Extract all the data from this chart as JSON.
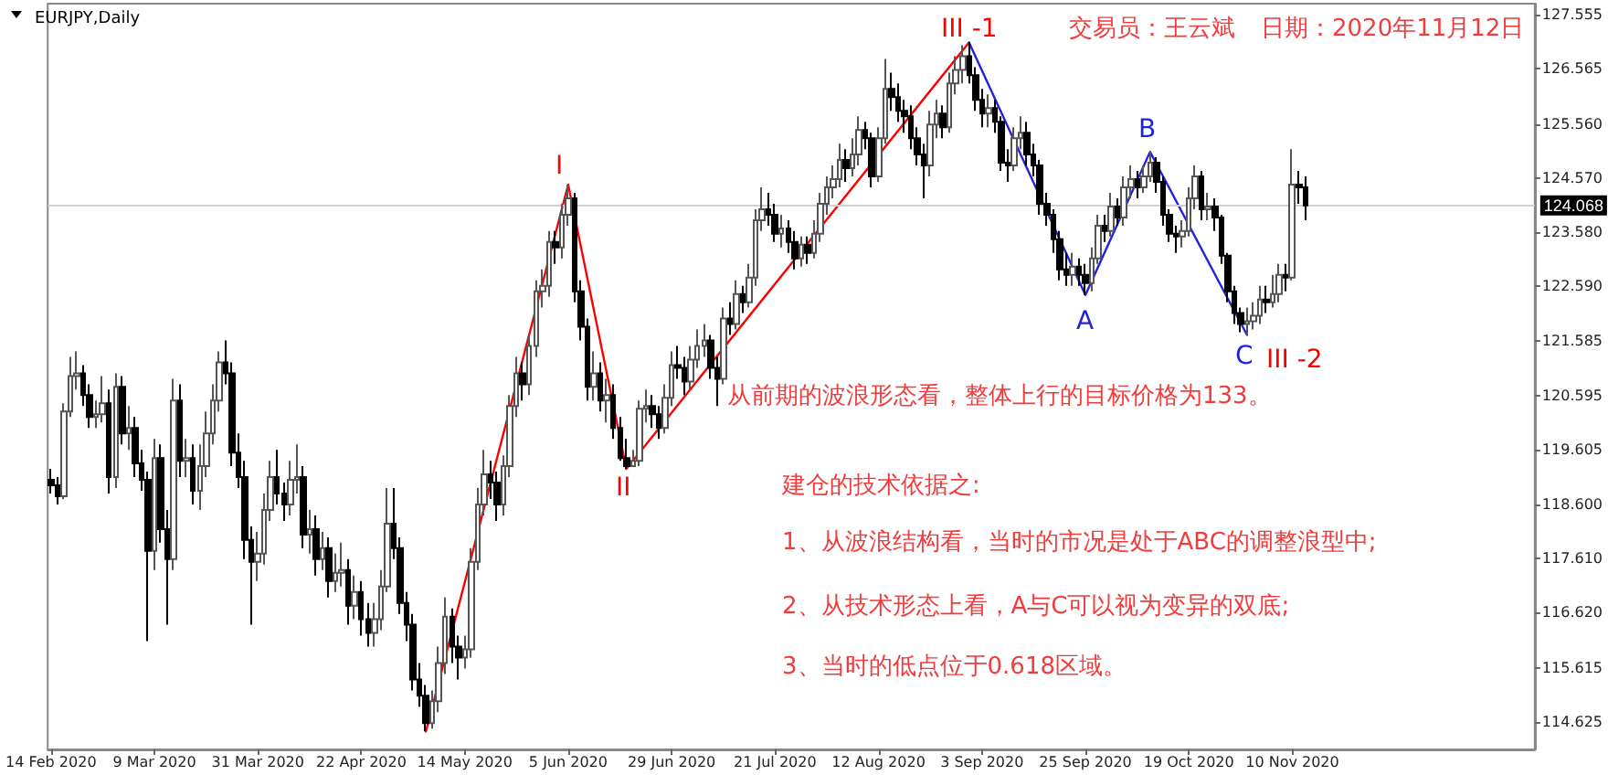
{
  "chart_data": {
    "type": "candlestick",
    "title": "EURJPY,Daily",
    "colors": [
      "#000000",
      "#000000",
      "#ffffff",
      "#ffffff",
      "#ffffff",
      "#000000",
      "#000000",
      "#ffffff",
      "#ffffff",
      "#000000",
      "#ffffff",
      "#000000",
      "#ffffff",
      "#000000",
      "#000000",
      "#000000",
      "#ffffff",
      "#000000",
      "#000000",
      "#ffffff",
      "#000000",
      "#ffffff",
      "#000000",
      "#ffffff",
      "#ffffff",
      "#ffffff",
      "#ffffff",
      "#000000",
      "#000000",
      "#000000",
      "#000000",
      "#000000",
      "#ffffff",
      "#ffffff",
      "#ffffff",
      "#000000",
      "#000000",
      "#ffffff",
      "#ffffff",
      "#000000",
      "#ffffff",
      "#000000",
      "#ffffff",
      "#000000",
      "#ffffff",
      "#ffffff",
      "#000000",
      "#ffffff",
      "#000000",
      "#000000",
      "#ffffff",
      "#ffffff",
      "#ffffff",
      "#000000",
      "#000000",
      "#000000",
      "#000000",
      "#000000",
      "#000000",
      "#ffffff",
      "#ffffff",
      "#ffffff",
      "#000000",
      "#000000",
      "#ffffff",
      "#ffffff",
      "#ffffff",
      "#ffffff",
      "#000000",
      "#000000",
      "#ffffff",
      "#ffffff",
      "#ffffff",
      "#000000",
      "#ffffff",
      "#ffffff",
      "#ffffff",
      "#ffffff",
      "#000000",
      "#ffffff",
      "#ffffff",
      "#000000",
      "#000000",
      "#000000",
      "#ffffff",
      "#000000",
      "#ffffff",
      "#000000",
      "#000000",
      "#000000",
      "#ffffff",
      "#ffffff",
      "#ffffff",
      "#000000",
      "#000000",
      "#ffffff",
      "#ffffff",
      "#000000",
      "#000000",
      "#ffffff",
      "#ffffff",
      "#ffffff",
      "#000000",
      "#000000",
      "#ffffff",
      "#000000",
      "#ffffff",
      "#000000",
      "#ffffff",
      "#ffffff",
      "#ffffff",
      "#000000",
      "#000000",
      "#ffffff",
      "#000000",
      "#000000",
      "#ffffff",
      "#000000",
      "#ffffff",
      "#ffffff",
      "#ffffff",
      "#ffffff",
      "#ffffff",
      "#000000",
      "#ffffff",
      "#ffffff",
      "#000000",
      "#000000",
      "#ffffff",
      "#ffffff",
      "#000000",
      "#000000",
      "#000000",
      "#000000",
      "#000000",
      "#000000",
      "#ffffff",
      "#ffffff",
      "#000000",
      "#ffffff",
      "#ffffff",
      "#ffffff",
      "#000000",
      "#000000",
      "#000000",
      "#ffffff",
      "#000000",
      "#000000",
      "#000000",
      "#ffffff",
      "#ffffff",
      "#000000",
      "#000000",
      "#000000",
      "#000000",
      "#000000",
      "#000000",
      "#000000",
      "#ffffff",
      "#000000",
      "#000000",
      "#ffffff",
      "#ffffff",
      "#000000",
      "#ffffff",
      "#000000",
      "#ffffff",
      "#ffffff",
      "#000000",
      "#ffffff",
      "#ffffff",
      "#000000",
      "#000000",
      "#000000",
      "#000000",
      "#ffffff",
      "#ffffff",
      "#ffffff",
      "#000000",
      "#ffffff",
      "#000000",
      "#000000",
      "#000000",
      "#000000",
      "#000000",
      "#ffffff",
      "#ffffff",
      "#ffffff",
      "#000000",
      "#ffffff",
      "#ffffff",
      "#000000",
      "#ffffff",
      "#000000",
      "#000000",
      null,
      null,
      null,
      null,
      null,
      null,
      null,
      null,
      null,
      null,
      null,
      null,
      null,
      null,
      null,
      null,
      null,
      null,
      null,
      null,
      null,
      null,
      null,
      null,
      null,
      null,
      null,
      null,
      null,
      null,
      null,
      null,
      null,
      null,
      null
    ],
    "categories": [
      "14 Feb 2020",
      null,
      null,
      null,
      null,
      null,
      null,
      null,
      null,
      null,
      null,
      null,
      null,
      null,
      null,
      null,
      "9 Mar 2020",
      null,
      null,
      null,
      null,
      null,
      null,
      null,
      null,
      null,
      null,
      null,
      null,
      null,
      null,
      null,
      "31 Mar 2020",
      null,
      null,
      null,
      null,
      null,
      null,
      null,
      null,
      null,
      null,
      null,
      null,
      null,
      null,
      null,
      "22 Apr 2020",
      null,
      null,
      null,
      null,
      null,
      null,
      null,
      null,
      null,
      null,
      null,
      null,
      null,
      null,
      null,
      "14 May 2020",
      null,
      null,
      null,
      null,
      null,
      null,
      null,
      null,
      null,
      null,
      null,
      null,
      null,
      null,
      null,
      "5 Jun 2020",
      null,
      null,
      null,
      null,
      null,
      null,
      null,
      null,
      null,
      null,
      null,
      null,
      null,
      null,
      null,
      "29 Jun 2020",
      null,
      null,
      null,
      null,
      null,
      null,
      null,
      null,
      null,
      null,
      null,
      null,
      null,
      null,
      null,
      "21 Jul 2020",
      null,
      null,
      null,
      null,
      null,
      null,
      null,
      null,
      null,
      null,
      null,
      null,
      null,
      null,
      null,
      "12 Aug 2020",
      null,
      null,
      null,
      null,
      null,
      null,
      null,
      null,
      null,
      null,
      null,
      null,
      null,
      null,
      null,
      "3 Sep 2020",
      null,
      null,
      null,
      null,
      null,
      null,
      null,
      null,
      null,
      null,
      null,
      null,
      null,
      null,
      null,
      "25 Sep 2020",
      null,
      null,
      null,
      null,
      null,
      null,
      null,
      null,
      null,
      null,
      null,
      null,
      null,
      null,
      null,
      "19 Oct 2020",
      null,
      null,
      null,
      null,
      null,
      null,
      null,
      null,
      null,
      null,
      null,
      null,
      null,
      null,
      null,
      "10 Nov 2020",
      null,
      null,
      null,
      null,
      null,
      null,
      null,
      null,
      null,
      null,
      null,
      null,
      null,
      null,
      null,
      null,
      null,
      null,
      null,
      null,
      null,
      null,
      null,
      null,
      null,
      null,
      null,
      null,
      null,
      null,
      null,
      null,
      null,
      null,
      null,
      null,
      null
    ],
    "ohlc": [
      [
        119.05,
        119.25,
        118.8,
        118.95
      ],
      [
        118.95,
        119.1,
        118.6,
        118.75
      ],
      [
        118.75,
        120.45,
        118.7,
        120.3
      ],
      [
        120.3,
        121.3,
        120.2,
        120.95
      ],
      [
        120.95,
        121.4,
        120.7,
        121.0
      ],
      [
        121.0,
        121.15,
        120.4,
        120.6
      ],
      [
        120.6,
        120.8,
        120.0,
        120.2
      ],
      [
        120.2,
        120.5,
        120.0,
        120.25
      ],
      [
        120.25,
        120.95,
        120.1,
        120.45
      ],
      [
        120.45,
        120.7,
        118.8,
        119.1
      ],
      [
        119.1,
        121.0,
        118.9,
        120.75
      ],
      [
        120.75,
        120.95,
        119.7,
        119.9
      ],
      [
        119.9,
        120.4,
        119.6,
        120.0
      ],
      [
        120.0,
        120.2,
        119.1,
        119.35
      ],
      [
        119.35,
        119.6,
        118.85,
        119.05
      ],
      [
        119.05,
        119.2,
        116.1,
        117.75
      ],
      [
        117.75,
        119.8,
        117.4,
        119.45
      ],
      [
        119.45,
        119.7,
        117.9,
        118.15
      ],
      [
        118.15,
        118.5,
        116.4,
        117.6
      ],
      [
        117.6,
        120.9,
        117.4,
        120.5
      ],
      [
        120.5,
        120.8,
        119.1,
        119.4
      ],
      [
        119.4,
        119.8,
        119.1,
        119.45
      ],
      [
        119.45,
        119.7,
        118.6,
        118.85
      ],
      [
        118.85,
        119.7,
        118.5,
        119.3
      ],
      [
        119.3,
        120.3,
        119.1,
        119.9
      ],
      [
        119.9,
        120.8,
        119.7,
        120.5
      ],
      [
        120.5,
        121.4,
        120.3,
        121.2
      ],
      [
        121.2,
        121.6,
        120.8,
        121.0
      ],
      [
        121.0,
        121.2,
        119.3,
        119.55
      ],
      [
        119.55,
        119.9,
        118.9,
        119.1
      ],
      [
        119.1,
        119.4,
        117.6,
        117.95
      ],
      [
        117.95,
        118.2,
        116.4,
        117.55
      ],
      [
        117.55,
        118.1,
        117.2,
        117.7
      ],
      [
        117.7,
        118.8,
        117.5,
        118.5
      ],
      [
        118.5,
        119.4,
        118.3,
        119.1
      ],
      [
        119.1,
        119.6,
        118.6,
        118.8
      ],
      [
        118.8,
        119.0,
        118.3,
        118.6
      ],
      [
        118.6,
        119.4,
        118.4,
        119.05
      ],
      [
        119.05,
        119.7,
        118.8,
        119.1
      ],
      [
        119.1,
        119.3,
        117.8,
        118.05
      ],
      [
        118.05,
        118.5,
        117.7,
        118.15
      ],
      [
        118.15,
        118.4,
        117.3,
        117.6
      ],
      [
        117.6,
        118.1,
        117.4,
        117.8
      ],
      [
        117.8,
        118.0,
        116.9,
        117.2
      ],
      [
        117.2,
        117.7,
        117.0,
        117.35
      ],
      [
        117.35,
        117.9,
        117.1,
        117.4
      ],
      [
        117.4,
        117.6,
        116.4,
        116.75
      ],
      [
        116.75,
        117.3,
        116.5,
        117.0
      ],
      [
        117.0,
        117.2,
        116.2,
        116.5
      ],
      [
        116.5,
        116.8,
        116.0,
        116.25
      ],
      [
        116.25,
        116.8,
        116.0,
        116.5
      ],
      [
        116.5,
        117.4,
        116.3,
        117.1
      ],
      [
        117.1,
        118.9,
        117.0,
        118.25
      ],
      [
        118.25,
        118.9,
        117.6,
        117.8
      ],
      [
        117.8,
        118.0,
        116.6,
        116.8
      ],
      [
        116.8,
        117.0,
        116.1,
        116.4
      ],
      [
        116.4,
        116.6,
        115.2,
        115.4
      ],
      [
        115.4,
        115.7,
        114.9,
        115.1
      ],
      [
        115.1,
        115.3,
        114.45,
        114.6
      ],
      [
        114.6,
        115.2,
        114.5,
        115.0
      ],
      [
        115.0,
        116.0,
        114.8,
        115.7
      ],
      [
        115.7,
        116.9,
        115.5,
        116.55
      ],
      [
        116.55,
        116.7,
        115.7,
        116.0
      ],
      [
        116.0,
        116.2,
        115.4,
        115.8
      ],
      [
        115.8,
        116.2,
        115.6,
        115.95
      ],
      [
        115.95,
        117.8,
        115.8,
        117.55
      ],
      [
        117.55,
        118.9,
        117.4,
        118.6
      ],
      [
        118.6,
        119.6,
        118.4,
        119.15
      ],
      [
        119.15,
        119.4,
        118.7,
        119.0
      ],
      [
        119.0,
        119.2,
        118.3,
        118.6
      ],
      [
        118.6,
        119.5,
        118.4,
        119.3
      ],
      [
        119.3,
        120.6,
        119.1,
        120.4
      ],
      [
        120.4,
        121.3,
        120.2,
        121.0
      ],
      [
        121.0,
        121.2,
        120.5,
        120.8
      ],
      [
        120.8,
        121.7,
        120.6,
        121.5
      ],
      [
        121.5,
        122.7,
        121.3,
        122.5
      ],
      [
        122.5,
        122.9,
        122.2,
        122.6
      ],
      [
        122.6,
        123.6,
        122.4,
        123.4
      ],
      [
        123.4,
        123.6,
        123.0,
        123.3
      ],
      [
        123.3,
        124.1,
        123.1,
        123.9
      ],
      [
        123.9,
        124.45,
        123.7,
        124.2
      ],
      [
        124.2,
        124.3,
        122.3,
        122.5
      ],
      [
        122.5,
        122.7,
        121.6,
        121.85
      ],
      [
        121.85,
        122.0,
        120.5,
        120.75
      ],
      [
        120.75,
        121.4,
        120.5,
        121.0
      ],
      [
        121.0,
        121.2,
        120.3,
        120.5
      ],
      [
        120.5,
        120.9,
        120.1,
        120.6
      ],
      [
        120.6,
        120.8,
        119.8,
        120.0
      ],
      [
        120.0,
        120.2,
        119.4,
        119.45
      ],
      [
        119.45,
        119.8,
        119.25,
        119.3
      ],
      [
        119.3,
        119.6,
        119.3,
        119.4
      ],
      [
        119.4,
        120.5,
        119.3,
        120.35
      ],
      [
        120.35,
        120.7,
        120.1,
        120.4
      ],
      [
        120.4,
        120.6,
        120.0,
        120.25
      ],
      [
        120.25,
        120.4,
        119.8,
        120.0
      ],
      [
        120.0,
        120.8,
        119.9,
        120.55
      ],
      [
        120.55,
        121.4,
        120.4,
        121.15
      ],
      [
        121.15,
        121.5,
        120.9,
        121.1
      ],
      [
        121.1,
        121.3,
        120.6,
        120.85
      ],
      [
        120.85,
        121.5,
        120.7,
        121.25
      ],
      [
        121.25,
        121.8,
        121.1,
        121.5
      ],
      [
        121.5,
        121.9,
        121.3,
        121.6
      ],
      [
        121.6,
        121.7,
        120.9,
        121.1
      ],
      [
        121.1,
        121.3,
        120.4,
        120.9
      ],
      [
        120.9,
        122.2,
        120.8,
        122.0
      ],
      [
        122.0,
        122.3,
        121.7,
        121.9
      ],
      [
        121.9,
        122.7,
        121.8,
        122.45
      ],
      [
        122.45,
        122.6,
        122.1,
        122.3
      ],
      [
        122.3,
        123.0,
        122.2,
        122.75
      ],
      [
        122.75,
        124.0,
        122.6,
        123.8
      ],
      [
        123.8,
        124.4,
        123.6,
        124.0
      ],
      [
        124.0,
        124.3,
        123.7,
        123.9
      ],
      [
        123.9,
        124.1,
        123.4,
        123.55
      ],
      [
        123.55,
        123.9,
        123.3,
        123.65
      ],
      [
        123.65,
        123.8,
        123.2,
        123.4
      ],
      [
        123.4,
        123.6,
        122.9,
        123.1
      ],
      [
        123.1,
        123.5,
        122.95,
        123.35
      ],
      [
        123.35,
        123.5,
        123.0,
        123.2
      ],
      [
        123.2,
        123.8,
        123.1,
        123.55
      ],
      [
        123.55,
        124.3,
        123.4,
        124.1
      ],
      [
        124.1,
        124.6,
        123.9,
        124.4
      ],
      [
        124.4,
        124.8,
        124.2,
        124.55
      ],
      [
        124.55,
        125.2,
        124.4,
        124.9
      ],
      [
        124.9,
        125.1,
        124.5,
        124.75
      ],
      [
        124.75,
        125.3,
        124.6,
        125.0
      ],
      [
        125.0,
        125.7,
        124.8,
        125.45
      ],
      [
        125.45,
        125.6,
        125.1,
        125.3
      ],
      [
        125.3,
        125.4,
        124.4,
        124.6
      ],
      [
        124.6,
        125.5,
        124.5,
        125.3
      ],
      [
        125.3,
        126.75,
        125.2,
        126.2
      ],
      [
        126.2,
        126.5,
        125.8,
        126.05
      ],
      [
        126.05,
        126.3,
        125.6,
        125.8
      ],
      [
        125.8,
        126.0,
        125.4,
        125.7
      ],
      [
        125.7,
        125.9,
        125.1,
        125.3
      ],
      [
        125.3,
        125.5,
        124.8,
        125.0
      ],
      [
        125.0,
        125.2,
        124.2,
        124.8
      ],
      [
        124.8,
        125.8,
        124.6,
        125.55
      ],
      [
        125.55,
        126.0,
        125.3,
        125.75
      ],
      [
        125.75,
        125.9,
        125.3,
        125.5
      ],
      [
        125.5,
        126.5,
        125.4,
        126.3
      ],
      [
        126.3,
        126.8,
        126.1,
        126.55
      ],
      [
        126.55,
        127.0,
        126.3,
        126.8
      ],
      [
        126.8,
        127.05,
        126.3,
        126.45
      ],
      [
        126.45,
        126.6,
        125.8,
        126.0
      ],
      [
        126.0,
        126.2,
        125.5,
        125.75
      ],
      [
        125.75,
        126.1,
        125.5,
        125.85
      ],
      [
        125.85,
        126.0,
        125.4,
        125.6
      ],
      [
        125.6,
        125.7,
        124.7,
        124.85
      ],
      [
        124.85,
        125.1,
        124.5,
        124.8
      ],
      [
        124.8,
        125.5,
        124.7,
        125.3
      ],
      [
        125.3,
        125.7,
        125.1,
        125.4
      ],
      [
        125.4,
        125.6,
        124.8,
        125.0
      ],
      [
        125.0,
        125.2,
        124.6,
        124.8
      ],
      [
        124.8,
        124.9,
        123.9,
        124.1
      ],
      [
        124.1,
        124.3,
        123.7,
        123.9
      ],
      [
        123.9,
        124.0,
        123.2,
        123.45
      ],
      [
        123.45,
        123.6,
        122.7,
        122.9
      ],
      [
        122.9,
        123.2,
        122.6,
        122.8
      ],
      [
        122.8,
        123.2,
        122.6,
        122.95
      ],
      [
        122.95,
        123.1,
        122.6,
        122.8
      ],
      [
        122.8,
        123.0,
        122.43,
        122.65
      ],
      [
        122.65,
        123.3,
        122.5,
        123.1
      ],
      [
        123.1,
        123.9,
        123.0,
        123.7
      ],
      [
        123.7,
        123.9,
        123.4,
        123.6
      ],
      [
        123.6,
        124.3,
        123.5,
        124.05
      ],
      [
        124.05,
        124.2,
        123.7,
        123.85
      ],
      [
        123.85,
        124.6,
        123.7,
        124.4
      ],
      [
        124.4,
        124.8,
        124.2,
        124.55
      ],
      [
        124.55,
        124.7,
        124.2,
        124.4
      ],
      [
        124.4,
        124.8,
        124.3,
        124.6
      ],
      [
        124.6,
        125.05,
        124.5,
        124.85
      ],
      [
        124.85,
        124.95,
        124.3,
        124.5
      ],
      [
        124.5,
        124.6,
        123.7,
        123.9
      ],
      [
        123.9,
        124.0,
        123.4,
        123.55
      ],
      [
        123.55,
        123.7,
        123.2,
        123.5
      ],
      [
        123.5,
        123.8,
        123.3,
        123.6
      ],
      [
        123.6,
        124.4,
        123.5,
        124.2
      ],
      [
        124.2,
        124.8,
        124.0,
        124.6
      ],
      [
        124.6,
        124.7,
        123.8,
        124.0
      ],
      [
        124.0,
        124.3,
        123.8,
        124.05
      ],
      [
        124.05,
        124.2,
        123.6,
        123.85
      ],
      [
        123.85,
        123.9,
        123.0,
        123.15
      ],
      [
        123.15,
        123.2,
        122.3,
        122.5
      ],
      [
        122.5,
        122.6,
        121.9,
        122.1
      ],
      [
        122.1,
        122.2,
        121.75,
        121.9
      ],
      [
        121.9,
        122.2,
        121.7,
        121.95
      ],
      [
        121.95,
        122.3,
        121.8,
        122.05
      ],
      [
        122.05,
        122.6,
        121.9,
        122.35
      ],
      [
        122.35,
        122.6,
        122.1,
        122.3
      ],
      [
        122.3,
        122.8,
        122.2,
        122.45
      ],
      [
        122.45,
        123.0,
        122.3,
        122.8
      ],
      [
        122.8,
        123.0,
        122.5,
        122.75
      ],
      [
        122.75,
        125.1,
        122.7,
        124.45
      ],
      [
        124.45,
        124.7,
        124.1,
        124.4
      ],
      [
        124.4,
        124.6,
        123.8,
        124.07
      ],
      null,
      null,
      null,
      null,
      null,
      null,
      null,
      null,
      null,
      null,
      null,
      null,
      null,
      null,
      null,
      null,
      null,
      null,
      null,
      null,
      null,
      null,
      null,
      null,
      null,
      null,
      null,
      null,
      null,
      null,
      null,
      null,
      null,
      null,
      null
    ],
    "series": [
      {
        "type": "line",
        "color": "#ff0000",
        "values": [
          null,
          null,
          null,
          null,
          null,
          null,
          null,
          null,
          null,
          null,
          null,
          null,
          null,
          null,
          null,
          null,
          null,
          null,
          null,
          null,
          null,
          null,
          null,
          null,
          null,
          null,
          null,
          null,
          null,
          null,
          null,
          null,
          null,
          null,
          null,
          null,
          null,
          null,
          null,
          null,
          null,
          null,
          null,
          null,
          null,
          null,
          null,
          null,
          null,
          null,
          null,
          null,
          null,
          null,
          null,
          null,
          null,
          null,
          114.45,
          null,
          null,
          null,
          null,
          null,
          null,
          null,
          null,
          null,
          null,
          null,
          null,
          null,
          null,
          null,
          null,
          null,
          null,
          null,
          null,
          null,
          124.45,
          null,
          null,
          null,
          null,
          null,
          null,
          null,
          null,
          119.25,
          null,
          null,
          null,
          null,
          null,
          null,
          null,
          null,
          null,
          null,
          null,
          null,
          null,
          null,
          null,
          null,
          null,
          null,
          null,
          null,
          null,
          null,
          null,
          null,
          null,
          null,
          null,
          null,
          null,
          null,
          null,
          null,
          null,
          null,
          null,
          null,
          null,
          null,
          null,
          null,
          null,
          null,
          null,
          null,
          null,
          null,
          null,
          null,
          null,
          null,
          null,
          null,
          127.05,
          null,
          null,
          null,
          null,
          null,
          null,
          null,
          null,
          null,
          null,
          null,
          null,
          null,
          null,
          null,
          null,
          null,
          null,
          null,
          null,
          null,
          null,
          null,
          null,
          null,
          null,
          null,
          null,
          null,
          null,
          null,
          null,
          null,
          null,
          null,
          null,
          null,
          null,
          null,
          null,
          null,
          null,
          null,
          null,
          null,
          null,
          null,
          null,
          null,
          null,
          null,
          null,
          null,
          null,
          null,
          null,
          null,
          null,
          null,
          null,
          null,
          null,
          null,
          null,
          null,
          null,
          null,
          null,
          null,
          null,
          null,
          null,
          null,
          null,
          null,
          null,
          null,
          null,
          null,
          null,
          null,
          null,
          null,
          null,
          null,
          null,
          null
        ]
      },
      {
        "type": "line",
        "color": "#2222dd",
        "values": [
          null,
          null,
          null,
          null,
          null,
          null,
          null,
          null,
          null,
          null,
          null,
          null,
          null,
          null,
          null,
          null,
          null,
          null,
          null,
          null,
          null,
          null,
          null,
          null,
          null,
          null,
          null,
          null,
          null,
          null,
          null,
          null,
          null,
          null,
          null,
          null,
          null,
          null,
          null,
          null,
          null,
          null,
          null,
          null,
          null,
          null,
          null,
          null,
          null,
          null,
          null,
          null,
          null,
          null,
          null,
          null,
          null,
          null,
          null,
          null,
          null,
          null,
          null,
          null,
          null,
          null,
          null,
          null,
          null,
          null,
          null,
          null,
          null,
          null,
          null,
          null,
          null,
          null,
          null,
          null,
          null,
          null,
          null,
          null,
          null,
          null,
          null,
          null,
          null,
          null,
          null,
          null,
          null,
          null,
          null,
          null,
          null,
          null,
          null,
          null,
          null,
          null,
          null,
          null,
          null,
          null,
          null,
          null,
          null,
          null,
          null,
          null,
          null,
          null,
          null,
          null,
          null,
          null,
          null,
          null,
          null,
          null,
          null,
          null,
          null,
          null,
          null,
          null,
          null,
          null,
          null,
          null,
          null,
          null,
          null,
          null,
          null,
          null,
          null,
          null,
          null,
          null,
          127.05,
          null,
          null,
          null,
          null,
          null,
          null,
          null,
          null,
          null,
          null,
          null,
          null,
          null,
          null,
          null,
          null,
          null,
          122.43,
          null,
          null,
          null,
          null,
          null,
          null,
          null,
          null,
          null,
          125.05,
          null,
          null,
          null,
          null,
          null,
          null,
          null,
          null,
          null,
          null,
          null,
          null,
          null,
          null,
          121.7,
          null,
          null,
          null,
          null,
          null,
          null,
          null,
          null,
          null,
          null,
          null,
          null,
          null,
          null,
          null,
          null,
          null,
          null,
          null,
          null,
          null,
          null,
          null,
          null,
          null,
          null,
          null,
          null,
          null,
          null,
          null,
          null,
          null,
          null,
          null,
          null,
          null,
          null,
          null,
          null,
          null,
          null,
          null,
          null
        ]
      }
    ],
    "marker": "none",
    "line_style": "solid",
    "ylim": [
      114.12,
      127.76
    ],
    "yticks": [
      127.555,
      126.565,
      {
        "value": 125.56,
        "label": "125.560"
      },
      {
        "value": 124.57,
        "label": "124.570"
      },
      {
        "value": 123.58,
        "label": "123.580"
      },
      {
        "value": 122.59,
        "label": "122.590"
      },
      121.585,
      120.595,
      119.605,
      {
        "value": 118.6,
        "label": "118.600"
      },
      {
        "value": 117.61,
        "label": "117.610"
      },
      {
        "value": 116.62,
        "label": "116.620"
      },
      115.615,
      114.625
    ],
    "ref_lines": [
      {
        "axis": "y",
        "value": 124.068,
        "label": "124.068",
        "color": "#d0d0d0"
      }
    ],
    "annotations": [
      "交易员：王云斌",
      "日期：2020年11月12日",
      "从前期的波浪形态看，整体上行的目标价格为133。",
      "建仓的技术依据之:",
      "1、从波浪结构看，当时的市况是处于ABC的调整浪型中;",
      "2、从技术形态上看，A与C可以视为变异的双底;",
      "3、当时的低点位于0.618区域。",
      "I",
      "II",
      "III -1",
      "A",
      "B",
      "C",
      "III -2"
    ],
    "grid": false
  }
}
